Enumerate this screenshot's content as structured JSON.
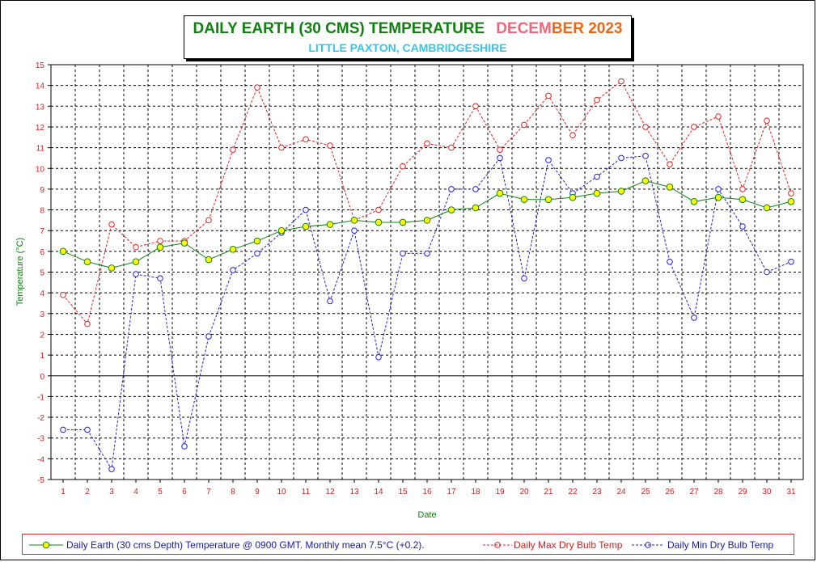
{
  "title": {
    "main": "DAILY EARTH (30 CMS) TEMPERATURE",
    "month_part1": "DECEM",
    "month_part2": "BER 2023",
    "subtitle": "LITTLE PAXTON, CAMBRIDGESHIRE"
  },
  "colors": {
    "title_green": "#108010",
    "month_pink": "#ee6677",
    "month_orange": "#ee6611",
    "subtitle_cyan": "#33c6e8",
    "earth_line": "#108010",
    "earth_marker": "#ffff00",
    "max_line": "#dd2222",
    "min_line": "#2222cc",
    "axis_label_red": "#cc2222",
    "ylabel_green": "#108010"
  },
  "chart_data": {
    "type": "line",
    "xlabel": "Date",
    "ylabel": "Temperature (°C)",
    "ylim": [
      -5,
      15
    ],
    "xlim": [
      0.5,
      31.5
    ],
    "grid": true,
    "legend_placement": "bottom",
    "x": [
      1,
      2,
      3,
      4,
      5,
      6,
      7,
      8,
      9,
      10,
      11,
      12,
      13,
      14,
      15,
      16,
      17,
      18,
      19,
      20,
      21,
      22,
      23,
      24,
      25,
      26,
      27,
      28,
      29,
      30,
      31
    ],
    "y_ticks": [
      15,
      14,
      13,
      12,
      11,
      10,
      9,
      8,
      7,
      6,
      5,
      4,
      3,
      2,
      1,
      0,
      -1,
      -2,
      -3,
      -4,
      -5
    ],
    "series": [
      {
        "name": "Daily Earth (30 cms Depth) Temperature @ 0900 GMT. Monthly mean 7.5°C (+0.2).",
        "style": "solid",
        "values": [
          6.0,
          5.5,
          5.2,
          5.5,
          6.2,
          6.4,
          5.6,
          6.1,
          6.5,
          7.0,
          7.2,
          7.3,
          7.5,
          7.4,
          7.4,
          7.5,
          8.0,
          8.1,
          8.8,
          8.5,
          8.5,
          8.6,
          8.8,
          8.9,
          9.4,
          9.1,
          8.4,
          8.6,
          8.5,
          8.1,
          8.4
        ]
      },
      {
        "name": "Daily Max Dry Bulb Temp",
        "style": "dashed",
        "values": [
          3.9,
          2.5,
          7.3,
          6.2,
          6.5,
          6.5,
          7.5,
          10.9,
          13.9,
          11.0,
          11.4,
          11.1,
          7.5,
          8.0,
          10.1,
          11.2,
          11.0,
          13.0,
          10.9,
          12.1,
          13.5,
          11.6,
          13.3,
          14.2,
          12.0,
          10.2,
          12.0,
          12.5,
          9.0,
          12.3,
          8.8
        ]
      },
      {
        "name": "Daily Min Dry Bulb Temp",
        "style": "dashed",
        "values": [
          -2.6,
          -2.6,
          -4.5,
          4.9,
          4.7,
          -3.4,
          1.9,
          5.1,
          5.9,
          6.9,
          8.0,
          3.6,
          7.0,
          0.9,
          5.9,
          5.9,
          9.0,
          9.0,
          10.5,
          4.7,
          10.4,
          8.8,
          9.6,
          10.5,
          10.6,
          5.5,
          2.8,
          9.0,
          7.2,
          5.0,
          5.5
        ]
      }
    ]
  }
}
